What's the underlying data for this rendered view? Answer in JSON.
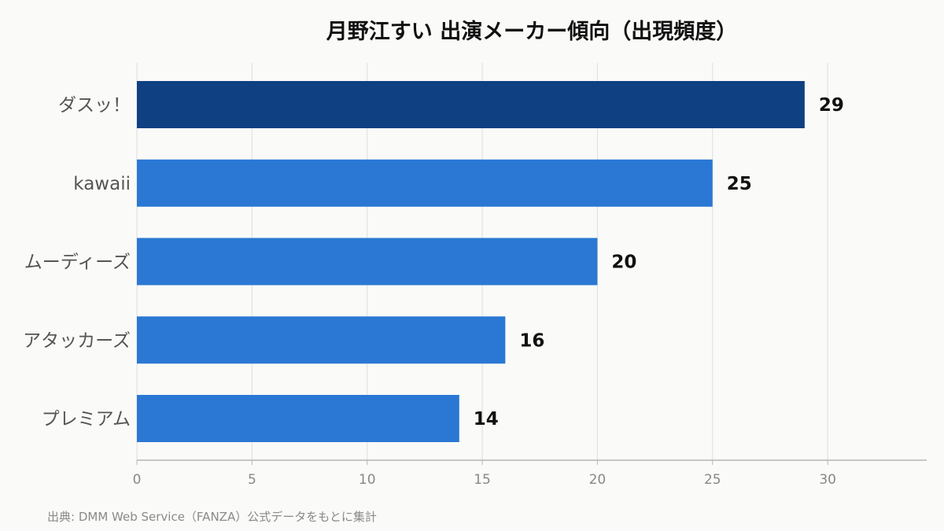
{
  "chart_data": {
    "type": "bar",
    "orientation": "horizontal",
    "title": "月野江すい 出演メーカー傾向（出現頻度）",
    "categories": [
      "ダスッ！",
      "kawaii",
      "ムーディーズ",
      "アタッカーズ",
      "プレミアム"
    ],
    "values": [
      29,
      25,
      20,
      16,
      14
    ],
    "xlim": [
      0,
      34.3
    ],
    "xticks": [
      0,
      5,
      10,
      15,
      20,
      25,
      30
    ],
    "xlabel": "",
    "ylabel": "",
    "grid": true,
    "legend": "none",
    "colors": {
      "highlight": "#0f4082",
      "bar": "#2a78d4"
    },
    "source": "出典: DMM Web Service（FANZA）公式データをもとに集計"
  }
}
